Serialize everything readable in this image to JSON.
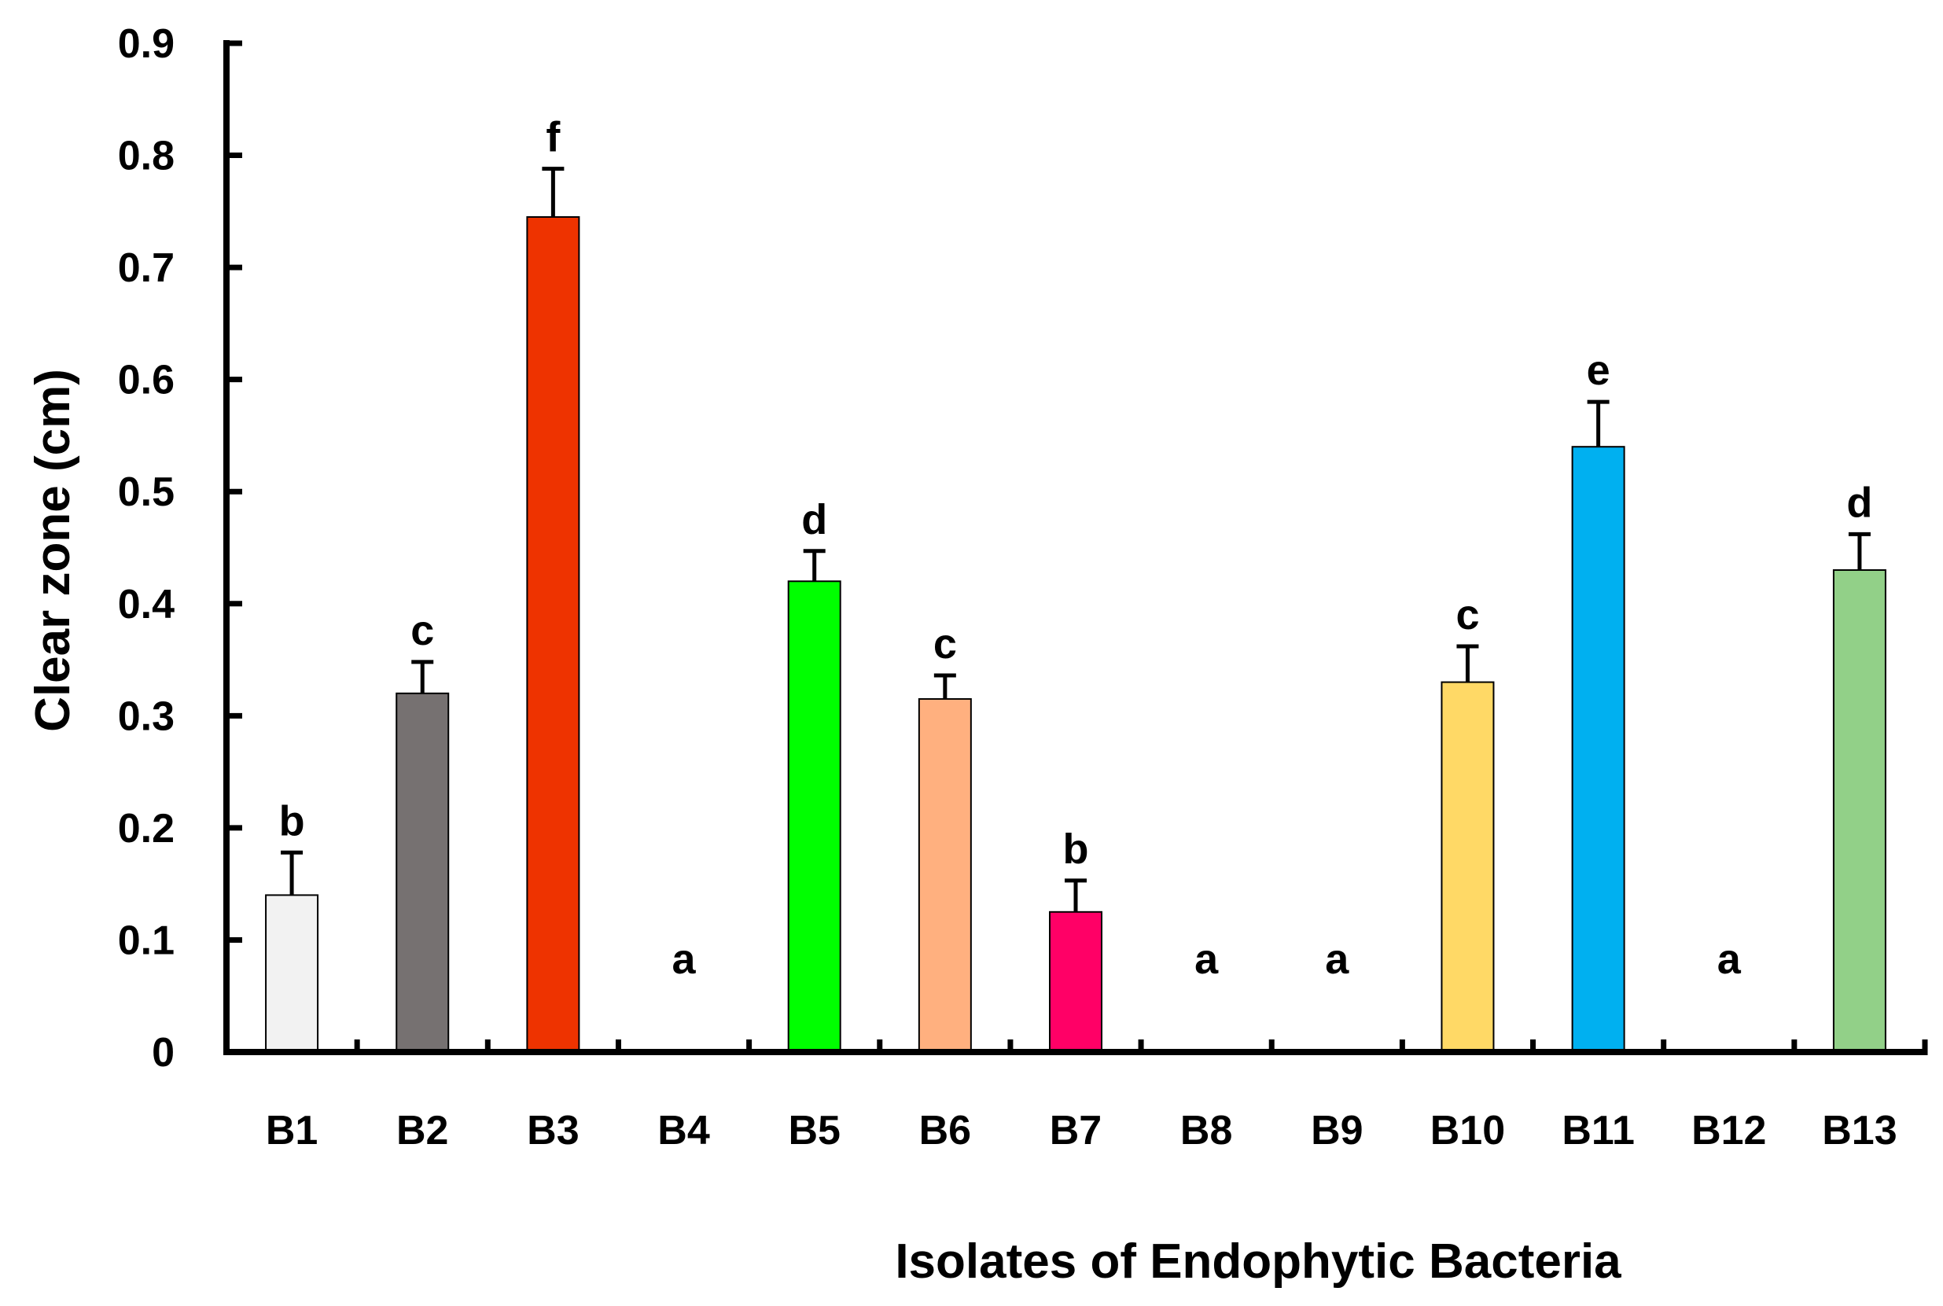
{
  "chart_data": {
    "type": "bar",
    "title": "",
    "xlabel": "Isolates of Endophytic Bacteria",
    "ylabel": "Clear zone (cm)",
    "ylim": [
      0,
      0.9
    ],
    "yticks": [
      "0",
      "0.1",
      "0.2",
      "0.3",
      "0.4",
      "0.5",
      "0.6",
      "0.7",
      "0.8",
      "0.9"
    ],
    "grid": false,
    "legend": "none",
    "categories": [
      "B1",
      "B2",
      "B3",
      "B4",
      "B5",
      "B6",
      "B7",
      "B8",
      "B9",
      "B10",
      "B11",
      "B12",
      "B13"
    ],
    "values": [
      0.14,
      0.32,
      0.745,
      0,
      0.42,
      0.315,
      0.125,
      0,
      0,
      0.33,
      0.54,
      0,
      0.43
    ],
    "errors": [
      0.038,
      0.028,
      0.043,
      0,
      0.027,
      0.021,
      0.028,
      0,
      0,
      0.032,
      0.04,
      0,
      0.032
    ],
    "significance": [
      "b",
      "c",
      "f",
      "a",
      "d",
      "c",
      "b",
      "a",
      "a",
      "c",
      "e",
      "a",
      "d"
    ],
    "colors": [
      "#f2f2f2",
      "#767171",
      "#ee3300",
      "#ffffff",
      "#00ff00",
      "#ffb07f",
      "#ff0066",
      "#ffffff",
      "#ffffff",
      "#ffd966",
      "#00b0f0",
      "#ffffff",
      "#92d088"
    ]
  }
}
